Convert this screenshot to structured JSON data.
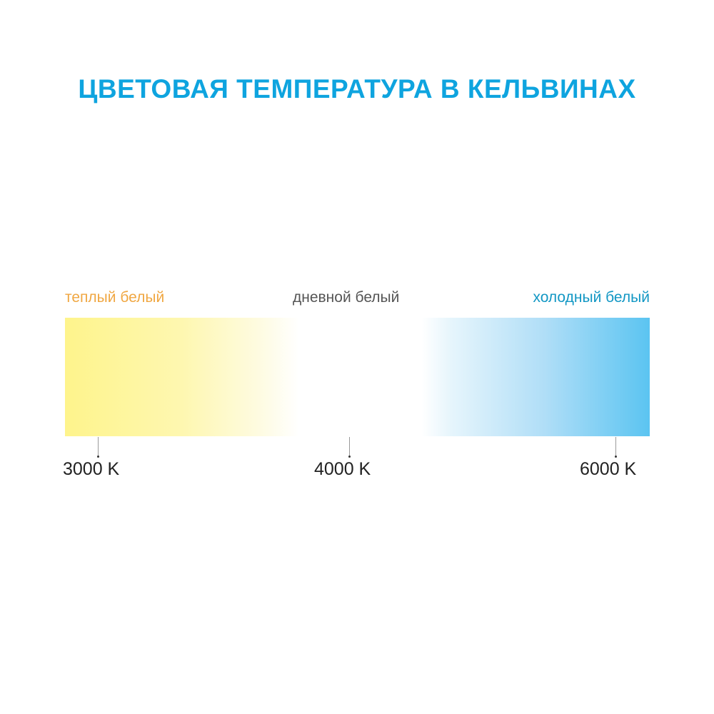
{
  "title": "ЦВЕТОВАЯ ТЕМПЕРАТУРА В КЕЛЬВИНАХ",
  "labels": {
    "warm": "теплый белый",
    "day": "дневной белый",
    "cold": "холодный белый"
  },
  "ticks": [
    "3000 K",
    "4000 K",
    "6000 K"
  ],
  "colors": {
    "title": "#0ea4df",
    "warm_label": "#f0a742",
    "day_label": "#555555",
    "cold_label": "#1297c4",
    "warm_end": "#fef48c",
    "cold_end": "#5bc4f1"
  }
}
